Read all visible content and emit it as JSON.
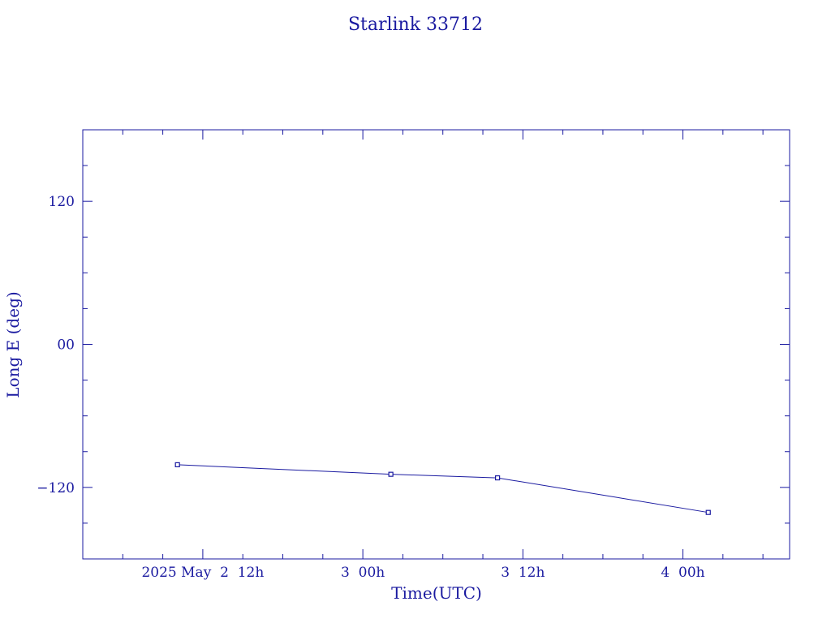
{
  "chart_data": {
    "type": "line",
    "title": "Starlink 33712",
    "xlabel": "Time(UTC)",
    "ylabel": "Long E (deg)",
    "x_tick_labels": [
      {
        "label": "2025 May  2  12h",
        "t": 36
      },
      {
        "label": "3  00h",
        "t": 48
      },
      {
        "label": "3  12h",
        "t": 60
      },
      {
        "label": "4  00h",
        "t": 72
      }
    ],
    "y_tick_labels": [
      {
        "label": "120",
        "value": 120
      },
      {
        "label": "00",
        "value": 0
      },
      {
        "label": "−120",
        "value": -120
      }
    ],
    "xlim": [
      27,
      80
    ],
    "ylim": [
      -180,
      180
    ],
    "x_time_units": "hours from 2025 May 1 00h UTC",
    "x_minor_step": 3,
    "y_minor_step": 30,
    "grid": false,
    "series": [
      {
        "x": [
          34.1,
          50.1,
          58.1,
          73.9
        ],
        "y": [
          -101,
          -109,
          -112,
          -141
        ]
      }
    ]
  }
}
